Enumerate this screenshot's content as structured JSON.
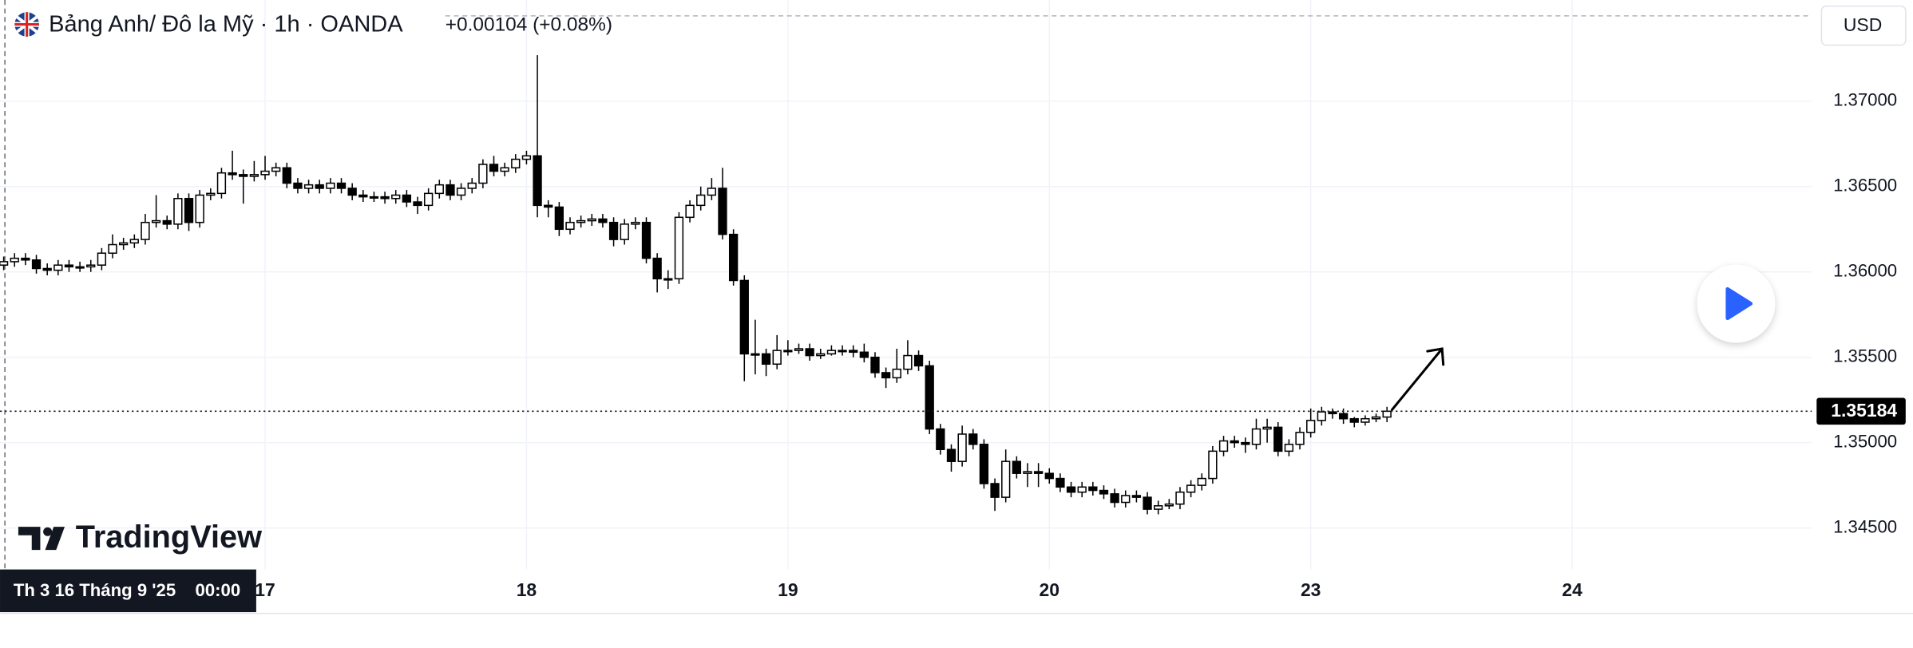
{
  "chart_data": {
    "type": "candlestick",
    "title": "Bảng Anh/ Đô la Mỹ · 1h · OANDA",
    "subtitle": "+0.00104 (+0.08%)",
    "currency": "USD",
    "watermark": "TradingView",
    "crosshair_date": "Th 3 16 Tháng 9 '25",
    "crosshair_time": "00:00",
    "up_color": "#ffffff",
    "down_color": "#000000",
    "edge_color": "#000000",
    "grid": true,
    "ylim": [
      1.34257,
      1.37593
    ],
    "yticks": [
      {
        "value": 1.345,
        "label": "1.34500"
      },
      {
        "value": 1.35,
        "label": "1.35000"
      },
      {
        "value": 1.355,
        "label": "1.35500"
      },
      {
        "value": 1.36,
        "label": "1.36000"
      },
      {
        "value": 1.365,
        "label": "1.36500"
      },
      {
        "value": 1.37,
        "label": "1.37000"
      }
    ],
    "last_price": {
      "value": 1.35184,
      "label": "1.35184"
    },
    "categories": [
      null,
      null,
      null,
      null,
      null,
      null,
      null,
      null,
      null,
      null,
      null,
      null,
      null,
      null,
      null,
      null,
      null,
      null,
      null,
      null,
      null,
      null,
      null,
      null,
      "17",
      null,
      null,
      null,
      null,
      null,
      null,
      null,
      null,
      null,
      null,
      null,
      null,
      null,
      null,
      null,
      null,
      null,
      null,
      null,
      null,
      null,
      null,
      null,
      "18",
      null,
      null,
      null,
      null,
      null,
      null,
      null,
      null,
      null,
      null,
      null,
      null,
      null,
      null,
      null,
      null,
      null,
      null,
      null,
      null,
      null,
      null,
      null,
      "19",
      null,
      null,
      null,
      null,
      null,
      null,
      null,
      null,
      null,
      null,
      null,
      null,
      null,
      null,
      null,
      null,
      null,
      null,
      null,
      null,
      null,
      null,
      null,
      "20",
      null,
      null,
      null,
      null,
      null,
      null,
      null,
      null,
      null,
      null,
      null,
      null,
      null,
      null,
      null,
      null,
      null,
      null,
      null,
      null,
      null,
      null,
      null,
      "23",
      null,
      null,
      null,
      null,
      null,
      null,
      null,
      null,
      null,
      null,
      null,
      null,
      null,
      null,
      null,
      null,
      null,
      null,
      null,
      null,
      null,
      null,
      null,
      "24",
      null,
      null,
      null,
      null,
      null,
      null,
      null,
      null,
      null,
      null,
      null,
      null,
      null,
      null,
      null,
      null,
      null,
      null,
      null,
      null,
      null
    ],
    "open": [
      1.3604,
      1.3606,
      1.3608,
      1.3607,
      1.3602,
      1.3601,
      1.3604,
      1.3603,
      1.3603,
      1.3604,
      1.3611,
      1.3616,
      1.3617,
      1.3619,
      1.3629,
      1.363,
      1.3628,
      1.3643,
      1.3629,
      1.3645,
      1.3646,
      1.3658,
      1.3657,
      1.3656,
      1.3657,
      1.3659,
      1.3661,
      1.3652,
      1.3649,
      1.3651,
      1.3649,
      1.3652,
      1.3649,
      1.3645,
      1.3644,
      1.3644,
      1.3643,
      1.3645,
      1.3641,
      1.3639,
      1.3646,
      1.3651,
      1.3645,
      1.3649,
      1.3652,
      1.3663,
      1.3659,
      1.3661,
      1.3666,
      1.3668,
      1.3639,
      1.3638,
      1.3625,
      1.3629,
      1.363,
      1.3631,
      1.3629,
      1.3619,
      1.3628,
      1.3629,
      1.3608,
      1.3596,
      1.3596,
      1.3632,
      1.3639,
      1.3645,
      1.3649,
      1.3622,
      1.3595,
      1.3552,
      1.3552,
      1.3546,
      1.3554,
      1.3554,
      1.3555,
      1.3551,
      1.3552,
      1.3554,
      1.3554,
      1.3553,
      1.355,
      1.3541,
      1.3538,
      1.3543,
      1.3551,
      1.3545,
      1.3508,
      1.3496,
      1.3489,
      1.3505,
      1.3499,
      1.3476,
      1.3468,
      1.3489,
      1.3482,
      1.3483,
      1.3482,
      1.3479,
      1.3474,
      1.3471,
      1.3474,
      1.3472,
      1.347,
      1.3465,
      1.3469,
      1.3468,
      1.3461,
      1.3463,
      1.3464,
      1.3471,
      1.3475,
      1.3479,
      1.3495,
      1.3501,
      1.35,
      1.3499,
      1.3508,
      1.3509,
      1.3495,
      1.3499,
      1.3506,
      1.3513,
      1.3518,
      1.3517,
      1.3514,
      1.3512,
      1.3514,
      1.3515,
      null,
      null,
      null,
      null,
      null,
      null,
      null,
      null,
      null,
      null,
      null,
      null,
      null,
      null,
      null,
      null,
      null,
      null,
      null,
      null,
      null,
      null,
      null,
      null,
      null,
      null,
      null,
      null,
      null,
      null,
      null,
      null,
      null,
      null,
      null,
      null,
      null,
      null
    ],
    "high": [
      1.3609,
      1.3611,
      1.3611,
      1.361,
      1.3605,
      1.3607,
      1.3607,
      1.3606,
      1.3607,
      1.3614,
      1.3622,
      1.362,
      1.3622,
      1.3634,
      1.3645,
      1.3633,
      1.3646,
      1.3646,
      1.3648,
      1.3649,
      1.3661,
      1.3671,
      1.366,
      1.3665,
      1.3668,
      1.3664,
      1.3664,
      1.3655,
      1.3654,
      1.3654,
      1.3655,
      1.3655,
      1.3652,
      1.3648,
      1.3647,
      1.3647,
      1.3648,
      1.3648,
      1.3644,
      1.3649,
      1.3654,
      1.3654,
      1.3652,
      1.3655,
      1.3666,
      1.3668,
      1.3664,
      1.3669,
      1.3671,
      1.3727,
      1.3642,
      1.3641,
      1.3632,
      1.3633,
      1.3634,
      1.3634,
      1.3632,
      1.3631,
      1.3632,
      1.3632,
      1.3611,
      1.3601,
      1.3635,
      1.3642,
      1.365,
      1.3655,
      1.3661,
      1.3625,
      1.3598,
      1.3572,
      1.3555,
      1.3563,
      1.356,
      1.3558,
      1.3558,
      1.3555,
      1.3557,
      1.3557,
      1.3557,
      1.3558,
      1.3553,
      1.3544,
      1.3555,
      1.356,
      1.3554,
      1.3548,
      1.3511,
      1.3499,
      1.351,
      1.3508,
      1.3502,
      1.3479,
      1.3496,
      1.3492,
      1.3488,
      1.3488,
      1.3485,
      1.3482,
      1.3477,
      1.3477,
      1.3477,
      1.3475,
      1.3473,
      1.3472,
      1.3472,
      1.3471,
      1.3466,
      1.3467,
      1.3474,
      1.3478,
      1.3482,
      1.3498,
      1.3504,
      1.3504,
      1.3503,
      1.3514,
      1.3514,
      1.3512,
      1.3502,
      1.3509,
      1.352,
      1.3521,
      1.352,
      1.352,
      1.3515,
      1.3516,
      1.3517,
      1.3521,
      null,
      null,
      null,
      null,
      null,
      null,
      null,
      null,
      null,
      null,
      null,
      null,
      null,
      null,
      null,
      null,
      null,
      null,
      null,
      null,
      null,
      null,
      null,
      null,
      null,
      null,
      null,
      null,
      null,
      null,
      null,
      null,
      null,
      null,
      null,
      null,
      null,
      null
    ],
    "low": [
      1.3601,
      1.3603,
      1.3604,
      1.3599,
      1.3598,
      1.3598,
      1.36,
      1.36,
      1.36,
      1.3601,
      1.3608,
      1.3613,
      1.3614,
      1.3616,
      1.3626,
      1.3625,
      1.3625,
      1.3624,
      1.3626,
      1.3642,
      1.3643,
      1.3654,
      1.364,
      1.3653,
      1.3654,
      1.3656,
      1.3649,
      1.3646,
      1.3646,
      1.3646,
      1.3646,
      1.3646,
      1.3642,
      1.3641,
      1.3641,
      1.364,
      1.364,
      1.3638,
      1.3634,
      1.3636,
      1.3643,
      1.3642,
      1.3642,
      1.3646,
      1.3649,
      1.3656,
      1.3656,
      1.3658,
      1.3663,
      1.3632,
      1.3632,
      1.3621,
      1.3622,
      1.3626,
      1.3627,
      1.3626,
      1.3615,
      1.3616,
      1.3625,
      1.3605,
      1.3588,
      1.359,
      1.3593,
      1.3629,
      1.3636,
      1.3642,
      1.3619,
      1.3592,
      1.3536,
      1.354,
      1.3539,
      1.3543,
      1.3551,
      1.3552,
      1.3548,
      1.3549,
      1.3551,
      1.3551,
      1.355,
      1.3547,
      1.3538,
      1.3532,
      1.3535,
      1.354,
      1.3542,
      1.3505,
      1.3493,
      1.3483,
      1.3486,
      1.3496,
      1.3473,
      1.346,
      1.3465,
      1.3479,
      1.3474,
      1.3474,
      1.3476,
      1.3471,
      1.3468,
      1.3468,
      1.3469,
      1.3467,
      1.3462,
      1.3462,
      1.3465,
      1.3458,
      1.3458,
      1.3461,
      1.3461,
      1.3468,
      1.3472,
      1.3476,
      1.3492,
      1.3497,
      1.3494,
      1.3496,
      1.35,
      1.3492,
      1.3492,
      1.3496,
      1.3503,
      1.351,
      1.3514,
      1.3511,
      1.3509,
      1.351,
      1.3512,
      1.3512,
      null,
      null,
      null,
      null,
      null,
      null,
      null,
      null,
      null,
      null,
      null,
      null,
      null,
      null,
      null,
      null,
      null,
      null,
      null,
      null,
      null,
      null,
      null,
      null,
      null,
      null,
      null,
      null,
      null,
      null,
      null,
      null,
      null,
      null,
      null,
      null,
      null,
      null
    ],
    "close": [
      1.3606,
      1.3608,
      1.3607,
      1.3602,
      1.3601,
      1.3604,
      1.3603,
      1.3603,
      1.3604,
      1.3611,
      1.3616,
      1.3617,
      1.3619,
      1.3629,
      1.363,
      1.3628,
      1.3643,
      1.3629,
      1.3645,
      1.3646,
      1.3658,
      1.3657,
      1.3656,
      1.3657,
      1.3659,
      1.3661,
      1.3652,
      1.3649,
      1.3651,
      1.3649,
      1.3652,
      1.3649,
      1.3645,
      1.3644,
      1.3644,
      1.3643,
      1.3645,
      1.3641,
      1.3639,
      1.3646,
      1.3651,
      1.3645,
      1.3649,
      1.3652,
      1.3663,
      1.3659,
      1.3661,
      1.3666,
      1.3668,
      1.3639,
      1.3638,
      1.3625,
      1.3629,
      1.363,
      1.3631,
      1.3629,
      1.3619,
      1.3628,
      1.3629,
      1.3608,
      1.3596,
      1.3596,
      1.3632,
      1.3639,
      1.3645,
      1.3649,
      1.3622,
      1.3595,
      1.3552,
      1.3552,
      1.3546,
      1.3554,
      1.3554,
      1.3555,
      1.3551,
      1.3552,
      1.3554,
      1.3554,
      1.3553,
      1.355,
      1.3541,
      1.3538,
      1.3543,
      1.3551,
      1.3545,
      1.3508,
      1.3496,
      1.3489,
      1.3505,
      1.3499,
      1.3476,
      1.3468,
      1.3489,
      1.3482,
      1.3483,
      1.3482,
      1.3479,
      1.3474,
      1.3471,
      1.3474,
      1.3472,
      1.347,
      1.3465,
      1.3469,
      1.3468,
      1.3461,
      1.3463,
      1.3464,
      1.3471,
      1.3475,
      1.3479,
      1.3495,
      1.3501,
      1.35,
      1.3499,
      1.3508,
      1.3509,
      1.3495,
      1.3499,
      1.3506,
      1.3513,
      1.3518,
      1.3517,
      1.3514,
      1.3512,
      1.3514,
      1.3515,
      1.35184,
      null,
      null,
      null,
      null,
      null,
      null,
      null,
      null,
      null,
      null,
      null,
      null,
      null,
      null,
      null,
      null,
      null,
      null,
      null,
      null,
      null,
      null,
      null,
      null,
      null,
      null,
      null,
      null,
      null,
      null,
      null,
      null,
      null,
      null,
      null,
      null,
      null,
      null
    ]
  }
}
